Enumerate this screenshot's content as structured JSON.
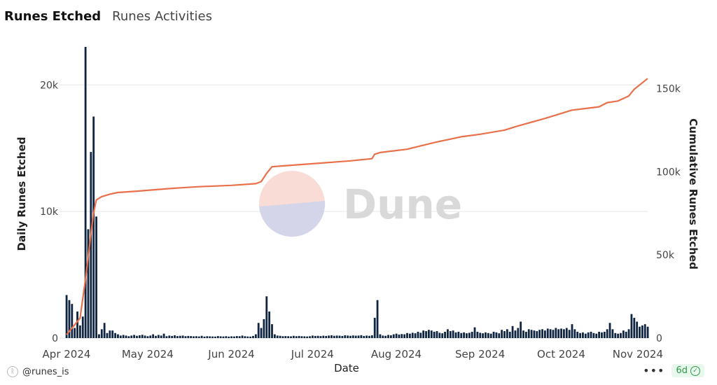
{
  "tabs": [
    {
      "label": "Runes Etched",
      "active": true
    },
    {
      "label": "Runes Activities",
      "active": false
    }
  ],
  "footer": {
    "source": "@runes_is",
    "more": "•••",
    "age": "6d"
  },
  "colors": {
    "bars": "#0f2440",
    "line": "#e8704a",
    "grid": "#e6e6e6",
    "badge": "#2c9a4a"
  },
  "chart_data": {
    "type": "bar",
    "xlabel": "Date",
    "ylabel": "Daily Runes Etched",
    "y2label": "Cumulative Runes Etched",
    "watermark": "Dune",
    "x_range": [
      "2024-04-01",
      "2024-11-02"
    ],
    "x_ticks": [
      "Apr 2024",
      "May 2024",
      "Jun 2024",
      "Jul 2024",
      "Aug 2024",
      "Sep 2024",
      "Oct 2024",
      "Nov 2024"
    ],
    "y_ticks": [
      "0",
      "10k",
      "20k"
    ],
    "ylim": [
      0,
      23000
    ],
    "y2_ticks": [
      "0",
      "50k",
      "100k",
      "150k"
    ],
    "y2lim": [
      0,
      175000
    ],
    "grid": true,
    "series": [
      {
        "type": "bar",
        "axis": "left",
        "points": [
          [
            "2024-04-01",
            3400
          ],
          [
            "2024-04-02",
            3000
          ],
          [
            "2024-04-03",
            2700
          ],
          [
            "2024-04-04",
            800
          ],
          [
            "2024-04-05",
            2100
          ],
          [
            "2024-04-06",
            1000
          ],
          [
            "2024-04-07",
            1700
          ],
          [
            "2024-04-08",
            23000
          ],
          [
            "2024-04-09",
            8600
          ],
          [
            "2024-04-10",
            14700
          ],
          [
            "2024-04-11",
            17500
          ],
          [
            "2024-04-12",
            9600
          ],
          [
            "2024-04-13",
            300
          ],
          [
            "2024-04-14",
            700
          ],
          [
            "2024-04-15",
            1200
          ],
          [
            "2024-04-16",
            400
          ],
          [
            "2024-04-17",
            600
          ],
          [
            "2024-04-18",
            600
          ],
          [
            "2024-04-19",
            400
          ],
          [
            "2024-04-20",
            300
          ],
          [
            "2024-04-21",
            200
          ],
          [
            "2024-04-22",
            250
          ],
          [
            "2024-04-23",
            200
          ],
          [
            "2024-04-24",
            150
          ],
          [
            "2024-04-25",
            200
          ],
          [
            "2024-04-26",
            250
          ],
          [
            "2024-04-27",
            180
          ],
          [
            "2024-04-28",
            220
          ],
          [
            "2024-04-29",
            260
          ],
          [
            "2024-04-30",
            200
          ],
          [
            "2024-05-01",
            150
          ],
          [
            "2024-05-02",
            200
          ],
          [
            "2024-05-03",
            300
          ],
          [
            "2024-05-04",
            180
          ],
          [
            "2024-05-05",
            250
          ],
          [
            "2024-05-06",
            200
          ],
          [
            "2024-05-07",
            350
          ],
          [
            "2024-05-08",
            150
          ],
          [
            "2024-05-09",
            200
          ],
          [
            "2024-05-10",
            170
          ],
          [
            "2024-05-11",
            220
          ],
          [
            "2024-05-12",
            160
          ],
          [
            "2024-05-13",
            180
          ],
          [
            "2024-05-14",
            200
          ],
          [
            "2024-05-15",
            150
          ],
          [
            "2024-05-16",
            170
          ],
          [
            "2024-05-17",
            160
          ],
          [
            "2024-05-18",
            140
          ],
          [
            "2024-05-19",
            150
          ],
          [
            "2024-05-20",
            130
          ],
          [
            "2024-05-21",
            180
          ],
          [
            "2024-05-22",
            120
          ],
          [
            "2024-05-23",
            150
          ],
          [
            "2024-05-24",
            140
          ],
          [
            "2024-05-25",
            130
          ],
          [
            "2024-05-26",
            120
          ],
          [
            "2024-05-27",
            160
          ],
          [
            "2024-05-28",
            140
          ],
          [
            "2024-05-29",
            130
          ],
          [
            "2024-05-30",
            150
          ],
          [
            "2024-05-31",
            120
          ],
          [
            "2024-06-01",
            140
          ],
          [
            "2024-06-02",
            130
          ],
          [
            "2024-06-03",
            160
          ],
          [
            "2024-06-04",
            150
          ],
          [
            "2024-06-05",
            200
          ],
          [
            "2024-06-06",
            150
          ],
          [
            "2024-06-07",
            130
          ],
          [
            "2024-06-08",
            120
          ],
          [
            "2024-06-09",
            170
          ],
          [
            "2024-06-10",
            300
          ],
          [
            "2024-06-11",
            1200
          ],
          [
            "2024-06-12",
            800
          ],
          [
            "2024-06-13",
            1500
          ],
          [
            "2024-06-14",
            3300
          ],
          [
            "2024-06-15",
            2100
          ],
          [
            "2024-06-16",
            1100
          ],
          [
            "2024-06-17",
            300
          ],
          [
            "2024-06-18",
            200
          ],
          [
            "2024-06-19",
            180
          ],
          [
            "2024-06-20",
            150
          ],
          [
            "2024-06-21",
            160
          ],
          [
            "2024-06-22",
            150
          ],
          [
            "2024-06-23",
            140
          ],
          [
            "2024-06-24",
            180
          ],
          [
            "2024-06-25",
            150
          ],
          [
            "2024-06-26",
            170
          ],
          [
            "2024-06-27",
            150
          ],
          [
            "2024-06-28",
            140
          ],
          [
            "2024-06-29",
            130
          ],
          [
            "2024-06-30",
            150
          ],
          [
            "2024-07-01",
            200
          ],
          [
            "2024-07-02",
            170
          ],
          [
            "2024-07-03",
            180
          ],
          [
            "2024-07-04",
            160
          ],
          [
            "2024-07-05",
            190
          ],
          [
            "2024-07-06",
            170
          ],
          [
            "2024-07-07",
            200
          ],
          [
            "2024-07-08",
            220
          ],
          [
            "2024-07-09",
            180
          ],
          [
            "2024-07-10",
            200
          ],
          [
            "2024-07-11",
            190
          ],
          [
            "2024-07-12",
            170
          ],
          [
            "2024-07-13",
            220
          ],
          [
            "2024-07-14",
            200
          ],
          [
            "2024-07-15",
            180
          ],
          [
            "2024-07-16",
            210
          ],
          [
            "2024-07-17",
            190
          ],
          [
            "2024-07-18",
            200
          ],
          [
            "2024-07-19",
            230
          ],
          [
            "2024-07-20",
            170
          ],
          [
            "2024-07-21",
            200
          ],
          [
            "2024-07-22",
            180
          ],
          [
            "2024-07-23",
            220
          ],
          [
            "2024-07-24",
            1600
          ],
          [
            "2024-07-25",
            3000
          ],
          [
            "2024-07-26",
            300
          ],
          [
            "2024-07-27",
            200
          ],
          [
            "2024-07-28",
            180
          ],
          [
            "2024-07-29",
            250
          ],
          [
            "2024-07-30",
            220
          ],
          [
            "2024-07-31",
            300
          ],
          [
            "2024-08-01",
            350
          ],
          [
            "2024-08-02",
            280
          ],
          [
            "2024-08-03",
            320
          ],
          [
            "2024-08-04",
            300
          ],
          [
            "2024-08-05",
            400
          ],
          [
            "2024-08-06",
            350
          ],
          [
            "2024-08-07",
            420
          ],
          [
            "2024-08-08",
            380
          ],
          [
            "2024-08-09",
            500
          ],
          [
            "2024-08-10",
            420
          ],
          [
            "2024-08-11",
            600
          ],
          [
            "2024-08-12",
            550
          ],
          [
            "2024-08-13",
            650
          ],
          [
            "2024-08-14",
            600
          ],
          [
            "2024-08-15",
            500
          ],
          [
            "2024-08-16",
            550
          ],
          [
            "2024-08-17",
            420
          ],
          [
            "2024-08-18",
            380
          ],
          [
            "2024-08-19",
            500
          ],
          [
            "2024-08-20",
            700
          ],
          [
            "2024-08-21",
            550
          ],
          [
            "2024-08-22",
            600
          ],
          [
            "2024-08-23",
            450
          ],
          [
            "2024-08-24",
            500
          ],
          [
            "2024-08-25",
            400
          ],
          [
            "2024-08-26",
            450
          ],
          [
            "2024-08-27",
            380
          ],
          [
            "2024-08-28",
            420
          ],
          [
            "2024-08-29",
            500
          ],
          [
            "2024-08-30",
            850
          ],
          [
            "2024-08-31",
            500
          ],
          [
            "2024-09-01",
            420
          ],
          [
            "2024-09-02",
            380
          ],
          [
            "2024-09-03",
            450
          ],
          [
            "2024-09-04",
            400
          ],
          [
            "2024-09-05",
            350
          ],
          [
            "2024-09-06",
            500
          ],
          [
            "2024-09-07",
            450
          ],
          [
            "2024-09-08",
            380
          ],
          [
            "2024-09-09",
            650
          ],
          [
            "2024-09-10",
            550
          ],
          [
            "2024-09-11",
            700
          ],
          [
            "2024-09-12",
            500
          ],
          [
            "2024-09-13",
            950
          ],
          [
            "2024-09-14",
            600
          ],
          [
            "2024-09-15",
            800
          ],
          [
            "2024-09-16",
            1300
          ],
          [
            "2024-09-17",
            600
          ],
          [
            "2024-09-18",
            500
          ],
          [
            "2024-09-19",
            700
          ],
          [
            "2024-09-20",
            650
          ],
          [
            "2024-09-21",
            600
          ],
          [
            "2024-09-22",
            550
          ],
          [
            "2024-09-23",
            650
          ],
          [
            "2024-09-24",
            700
          ],
          [
            "2024-09-25",
            600
          ],
          [
            "2024-09-26",
            750
          ],
          [
            "2024-09-27",
            700
          ],
          [
            "2024-09-28",
            650
          ],
          [
            "2024-09-29",
            800
          ],
          [
            "2024-09-30",
            700
          ],
          [
            "2024-10-01",
            750
          ],
          [
            "2024-10-02",
            700
          ],
          [
            "2024-10-03",
            800
          ],
          [
            "2024-10-04",
            650
          ],
          [
            "2024-10-05",
            1100
          ],
          [
            "2024-10-06",
            700
          ],
          [
            "2024-10-07",
            500
          ],
          [
            "2024-10-08",
            400
          ],
          [
            "2024-10-09",
            450
          ],
          [
            "2024-10-10",
            350
          ],
          [
            "2024-10-11",
            450
          ],
          [
            "2024-10-12",
            500
          ],
          [
            "2024-10-13",
            400
          ],
          [
            "2024-10-14",
            350
          ],
          [
            "2024-10-15",
            500
          ],
          [
            "2024-10-16",
            450
          ],
          [
            "2024-10-17",
            500
          ],
          [
            "2024-10-18",
            700
          ],
          [
            "2024-10-19",
            1200
          ],
          [
            "2024-10-20",
            700
          ],
          [
            "2024-10-21",
            400
          ],
          [
            "2024-10-22",
            350
          ],
          [
            "2024-10-23",
            400
          ],
          [
            "2024-10-24",
            600
          ],
          [
            "2024-10-25",
            500
          ],
          [
            "2024-10-26",
            700
          ],
          [
            "2024-10-27",
            1900
          ],
          [
            "2024-10-28",
            1600
          ],
          [
            "2024-10-29",
            1300
          ],
          [
            "2024-10-30",
            900
          ],
          [
            "2024-10-31",
            1000
          ],
          [
            "2024-11-01",
            1100
          ],
          [
            "2024-11-02",
            900
          ]
        ]
      },
      {
        "type": "line",
        "axis": "right",
        "points": [
          [
            "2024-04-01",
            2000
          ],
          [
            "2024-04-04",
            8000
          ],
          [
            "2024-04-06",
            12000
          ],
          [
            "2024-04-08",
            35000
          ],
          [
            "2024-04-10",
            62000
          ],
          [
            "2024-04-11",
            75000
          ],
          [
            "2024-04-12",
            83000
          ],
          [
            "2024-04-14",
            85000
          ],
          [
            "2024-04-17",
            86500
          ],
          [
            "2024-04-20",
            87500
          ],
          [
            "2024-04-27",
            88300
          ],
          [
            "2024-05-01",
            88800
          ],
          [
            "2024-05-10",
            90000
          ],
          [
            "2024-05-20",
            91000
          ],
          [
            "2024-06-01",
            91800
          ],
          [
            "2024-06-10",
            92800
          ],
          [
            "2024-06-12",
            94000
          ],
          [
            "2024-06-14",
            99000
          ],
          [
            "2024-06-16",
            103000
          ],
          [
            "2024-06-20",
            103500
          ],
          [
            "2024-07-01",
            104800
          ],
          [
            "2024-07-15",
            106500
          ],
          [
            "2024-07-23",
            107800
          ],
          [
            "2024-07-24",
            110500
          ],
          [
            "2024-07-26",
            111500
          ],
          [
            "2024-08-05",
            113500
          ],
          [
            "2024-08-15",
            117500
          ],
          [
            "2024-08-25",
            121000
          ],
          [
            "2024-09-01",
            122500
          ],
          [
            "2024-09-10",
            125000
          ],
          [
            "2024-09-15",
            127500
          ],
          [
            "2024-09-25",
            132000
          ],
          [
            "2024-10-01",
            135000
          ],
          [
            "2024-10-05",
            137000
          ],
          [
            "2024-10-10",
            138000
          ],
          [
            "2024-10-15",
            139000
          ],
          [
            "2024-10-18",
            141500
          ],
          [
            "2024-10-22",
            142500
          ],
          [
            "2024-10-26",
            145500
          ],
          [
            "2024-10-28",
            149500
          ],
          [
            "2024-11-02",
            156000
          ]
        ]
      }
    ]
  }
}
